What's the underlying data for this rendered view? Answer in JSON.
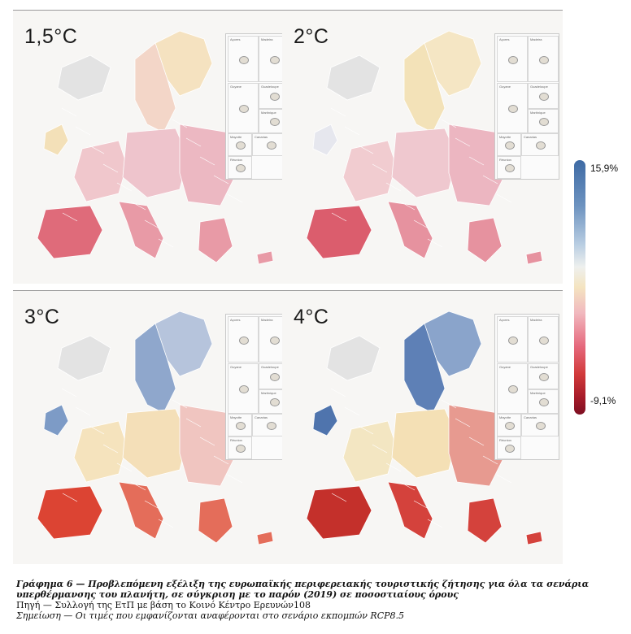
{
  "panels": [
    {
      "label": "1,5°C",
      "scenario": "1.5C"
    },
    {
      "label": "2°C",
      "scenario": "2C"
    },
    {
      "label": "3°C",
      "scenario": "3C"
    },
    {
      "label": "4°C",
      "scenario": "4C"
    }
  ],
  "legend": {
    "max_label": "15,9%",
    "min_label": "-9,1%",
    "max_value": 15.9,
    "min_value": -9.1,
    "colors": {
      "high": "#3e6aa4",
      "mid": "#f4e4c0",
      "low": "#7d0f22"
    }
  },
  "caption": {
    "title": "Γράφημα 6 — Προβλεπόμενη εξέλιξη της ευρωπαϊκής περιφερειακής τουριστικής ζήτησης για όλα τα σενάρια υπερθέρμανσης του πλανήτη, σε σύγκριση με το παρόν (2019) σε ποσοστιαίους όρους",
    "source": "Πηγή — Συλλογή της ΕτΠ με βάση το Κοινό Κέντρο Ερευνών108",
    "note": "Σημείωση — Οι τιμές που εμφανίζονται αναφέρονται στο σενάριο εκπομπών RCP8.5"
  },
  "inset_labels": [
    "Açores",
    "Madeira",
    "Guyane",
    "Guadeloupe",
    "Martinique",
    "Mayotte",
    "Canarias",
    "Réunion"
  ],
  "region_colors": {
    "1.5C": {
      "north": "#f3d6c8",
      "west": "#f0c7cc",
      "central": "#eec4cc",
      "south": "#e89aa6",
      "iberia_south": "#df6b7a",
      "east": "#ecb8c2",
      "ireland": "#f3e0b8",
      "nordic_far": "#f5e2c0"
    },
    "2C": {
      "north": "#f3e2b8",
      "west": "#f1ccd0",
      "central": "#efc8cf",
      "south": "#e6929f",
      "iberia_south": "#db5d6d",
      "east": "#ecb6c1",
      "ireland": "#e6e7ee",
      "nordic_far": "#f5e6c4"
    },
    "3C": {
      "north": "#8fa7cc",
      "west": "#f5e3bd",
      "central": "#f4dfb8",
      "south": "#e46d5a",
      "iberia_south": "#dc4433",
      "east": "#f0c5c0",
      "ireland": "#7d9bc6",
      "nordic_far": "#b6c4dc"
    },
    "4C": {
      "north": "#5e80b6",
      "west": "#f3e6c2",
      "central": "#f4e0b5",
      "south": "#d4423c",
      "iberia_south": "#c4302b",
      "east": "#e79a90",
      "ireland": "#4f74ad",
      "nordic_far": "#8aa4cb"
    }
  }
}
